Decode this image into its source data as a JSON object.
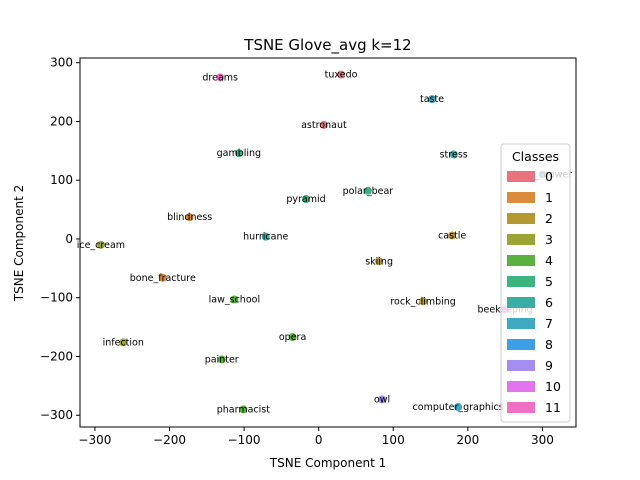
{
  "chart_data": {
    "type": "scatter",
    "title": "TSNE Glove_avg k=12",
    "xlabel": "TSNE Component 1",
    "ylabel": "TSNE Component 2",
    "xlim": [
      -320,
      345
    ],
    "ylim": [
      -320,
      308
    ],
    "xticks": [
      -300,
      -200,
      -100,
      0,
      100,
      200,
      300
    ],
    "yticks": [
      -300,
      -200,
      -100,
      0,
      100,
      200,
      300
    ],
    "grid": false,
    "legend": {
      "title": "Classes",
      "placement": "right",
      "entries": [
        "0",
        "1",
        "2",
        "3",
        "4",
        "5",
        "6",
        "7",
        "8",
        "9",
        "10",
        "11"
      ]
    },
    "class_colors": [
      "#e8737c",
      "#da8b3c",
      "#b69833",
      "#9ba434",
      "#5ab13d",
      "#3db380",
      "#39ada3",
      "#3da9c3",
      "#3d9fe6",
      "#a58cf0",
      "#e274ee",
      "#f170c4"
    ],
    "points": [
      {
        "label": "dreams",
        "x": -132,
        "y": 275,
        "cls": 11
      },
      {
        "label": "tuxedo",
        "x": 30,
        "y": 280,
        "cls": 0
      },
      {
        "label": "taste",
        "x": 152,
        "y": 238,
        "cls": 7
      },
      {
        "label": "astronaut",
        "x": 7,
        "y": 194,
        "cls": 0
      },
      {
        "label": "gambling",
        "x": -107,
        "y": 146,
        "cls": 5
      },
      {
        "label": "stress",
        "x": 181,
        "y": 144,
        "cls": 6
      },
      {
        "label": "lawn_mower",
        "x": 300,
        "y": 110,
        "cls": 8
      },
      {
        "label": "polar_bear",
        "x": 66,
        "y": 82,
        "cls": 5
      },
      {
        "label": "pyramid",
        "x": -17,
        "y": 68,
        "cls": 5
      },
      {
        "label": "blindness",
        "x": -173,
        "y": 37,
        "cls": 1
      },
      {
        "label": "hurricane",
        "x": -71,
        "y": 4,
        "cls": 6
      },
      {
        "label": "castle",
        "x": 179,
        "y": 6,
        "cls": 2
      },
      {
        "label": "ice_cream",
        "x": -292,
        "y": -10,
        "cls": 3
      },
      {
        "label": "skiing",
        "x": 81,
        "y": -38,
        "cls": 2
      },
      {
        "label": "bone_fracture",
        "x": -209,
        "y": -66,
        "cls": 1
      },
      {
        "label": "law_school",
        "x": -113,
        "y": -103,
        "cls": 4
      },
      {
        "label": "rock_climbing",
        "x": 140,
        "y": -106,
        "cls": 2
      },
      {
        "label": "beekeeping",
        "x": 250,
        "y": -120,
        "cls": 10
      },
      {
        "label": "opera",
        "x": -35,
        "y": -167,
        "cls": 4
      },
      {
        "label": "infection",
        "x": -262,
        "y": -176,
        "cls": 3
      },
      {
        "label": "painter",
        "x": -130,
        "y": -205,
        "cls": 4
      },
      {
        "label": "owl",
        "x": 85,
        "y": -273,
        "cls": 9
      },
      {
        "label": "computer_graphics",
        "x": 187,
        "y": -286,
        "cls": 7
      },
      {
        "label": "pharmacist",
        "x": -101,
        "y": -290,
        "cls": 4
      }
    ]
  }
}
